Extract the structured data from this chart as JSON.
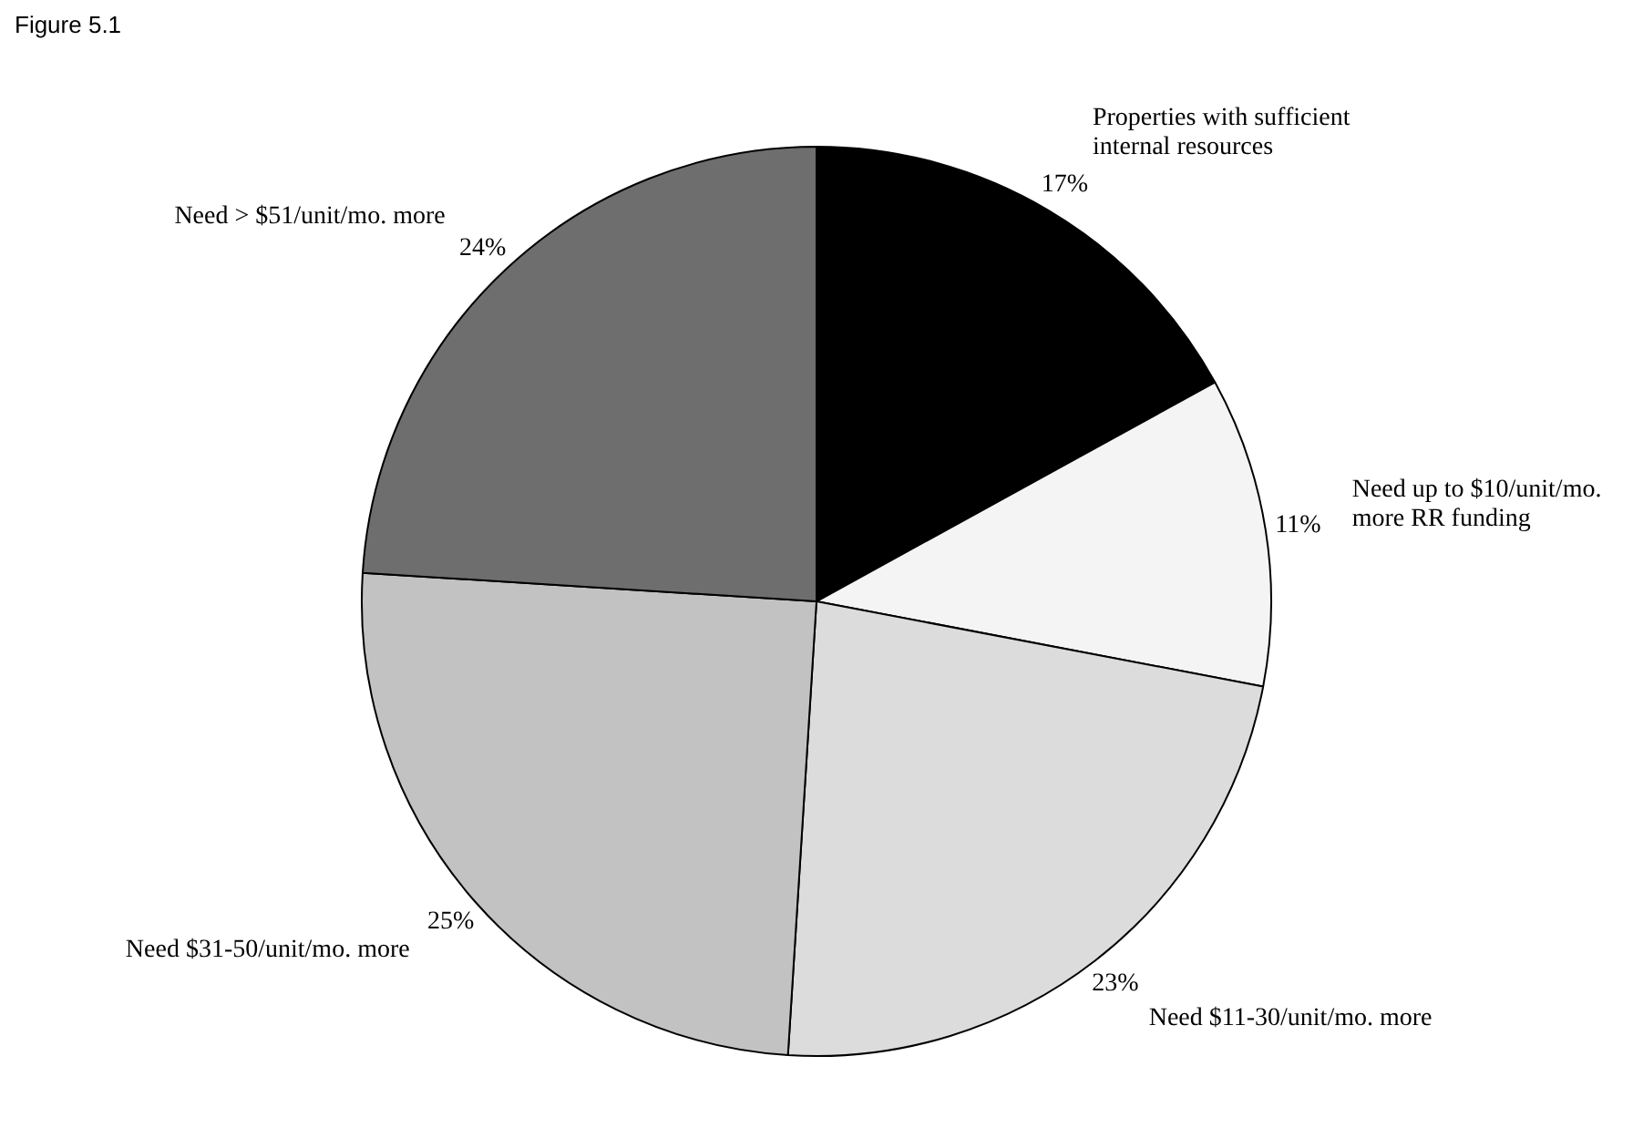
{
  "chart_data": {
    "type": "pie",
    "title": "Figure 5.1",
    "categories": [
      "Properties with sufficient internal resources",
      "Need up to $10/unit/mo. more RR funding",
      "Need $11-30/unit/mo. more",
      "Need $31-50/unit/mo. more",
      "Need > $51/unit/mo. more"
    ],
    "values": [
      17,
      11,
      23,
      25,
      24
    ],
    "value_labels": [
      "17%",
      "11%",
      "23%",
      "25%",
      "24%"
    ],
    "colors": [
      "#000000",
      "#f4f4f4",
      "#dcdcdc",
      "#c2c2c2",
      "#6e6e6e"
    ],
    "legend": false
  }
}
